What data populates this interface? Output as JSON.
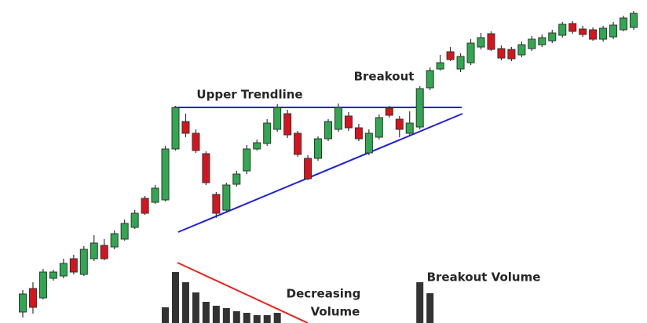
{
  "chart_data": {
    "type": "candlestick",
    "annotations": [
      "Upper Trendline",
      "Breakout",
      "Breakout Volume",
      "Decreasing",
      "Volume"
    ],
    "up_color": "#2fa84f",
    "down_color": "#d7141e",
    "volume_color": "#333333",
    "ylim": [
      0,
      412
    ],
    "y2lim": [
      0,
      412
    ],
    "open": [
      14,
      44,
      32,
      57,
      60,
      82,
      62,
      82,
      99,
      97,
      107,
      122,
      159,
      154,
      157,
      222,
      257,
      242,
      216,
      164,
      144,
      177,
      194,
      222,
      229,
      247,
      267,
      242,
      210,
      210,
      235,
      247,
      264,
      249,
      217,
      237,
      274,
      260,
      242,
      250,
      300,
      324,
      346,
      324,
      332,
      352,
      369,
      350,
      349,
      342,
      350,
      355,
      360,
      367,
      382,
      375,
      374,
      362,
      365,
      374,
      377
    ],
    "high": [
      42,
      52,
      69,
      68,
      82,
      87,
      98,
      112,
      107,
      118,
      132,
      144,
      162,
      176,
      226,
      277,
      267,
      247,
      219,
      167,
      179,
      194,
      227,
      234,
      260,
      279,
      272,
      245,
      214,
      238,
      260,
      280,
      269,
      254,
      247,
      266,
      277,
      264,
      270,
      302,
      326,
      342,
      352,
      344,
      362,
      370,
      372,
      354,
      352,
      359,
      366,
      368,
      374,
      384,
      385,
      379,
      377,
      379,
      384,
      392,
      398
    ],
    "low": [
      7,
      12,
      30,
      54,
      57,
      62,
      60,
      79,
      80,
      94,
      105,
      120,
      138,
      152,
      155,
      220,
      237,
      217,
      176,
      134,
      142,
      174,
      190,
      220,
      226,
      244,
      236,
      212,
      182,
      207,
      232,
      244,
      245,
      232,
      214,
      234,
      262,
      237,
      239,
      247,
      297,
      322,
      334,
      320,
      329,
      349,
      347,
      335,
      334,
      339,
      347,
      352,
      357,
      364,
      369,
      365,
      360,
      359,
      362,
      372,
      374
    ],
    "close": [
      37,
      20,
      65,
      65,
      76,
      65,
      94,
      102,
      82,
      114,
      127,
      140,
      140,
      172,
      222,
      275,
      242,
      220,
      179,
      140,
      176,
      190,
      222,
      230,
      255,
      275,
      240,
      215,
      184,
      235,
      257,
      275,
      249,
      235,
      242,
      262,
      265,
      247,
      255,
      299,
      322,
      332,
      336,
      340,
      357,
      364,
      349,
      338,
      337,
      355,
      362,
      364,
      370,
      381,
      372,
      368,
      362,
      376,
      380,
      389,
      395
    ],
    "volume": [
      null,
      null,
      null,
      null,
      null,
      null,
      null,
      null,
      null,
      null,
      null,
      null,
      null,
      null,
      20,
      65,
      52,
      39,
      27,
      22,
      19,
      15,
      13,
      10,
      10,
      13,
      null,
      null,
      null,
      null,
      null,
      null,
      null,
      null,
      null,
      null,
      null,
      null,
      null,
      52,
      38,
      null,
      null,
      null,
      null,
      null,
      null,
      null,
      null,
      null,
      null,
      null,
      null,
      null,
      null,
      null,
      null,
      null,
      null,
      null,
      null
    ]
  }
}
